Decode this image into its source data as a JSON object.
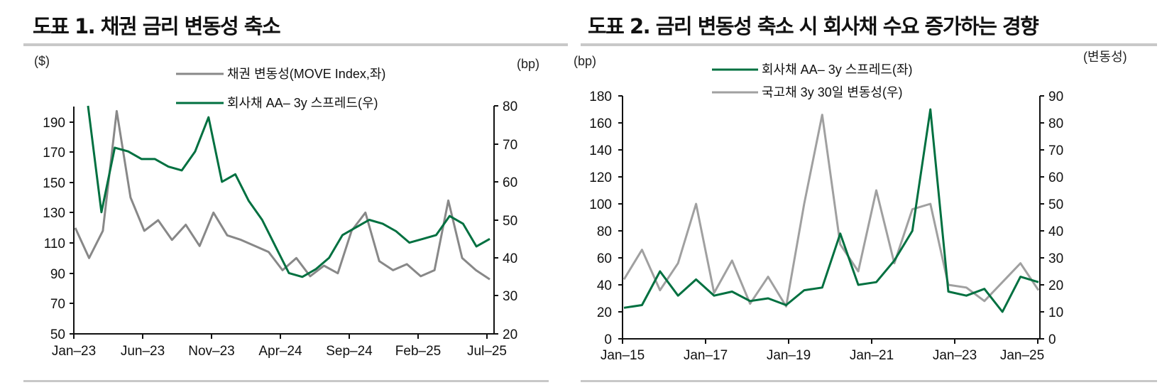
{
  "figure1": {
    "title": "도표 1. 채권 금리 변동성 축소",
    "left_unit": "($)",
    "right_unit": "(bp)",
    "legend": [
      {
        "label": "채권 변동성(MOVE Index,좌)",
        "color": "#888888"
      },
      {
        "label": "회사채 AA– 3y 스프레드(우)",
        "color": "#007040"
      }
    ],
    "left_ticks": [
      "190",
      "170",
      "150",
      "130",
      "110",
      "90",
      "70",
      "50"
    ],
    "right_ticks": [
      "80",
      "70",
      "60",
      "50",
      "40",
      "30",
      "20"
    ],
    "x_ticks": [
      "Jan–23",
      "Jun–23",
      "Nov–23",
      "Apr–24",
      "Sep–24",
      "Feb–25",
      "Jul–25"
    ]
  },
  "figure2": {
    "title": "도표 2. 금리 변동성 축소 시 회사채 수요 증가하는 경향",
    "left_unit": "(bp)",
    "right_unit": "(변동성)",
    "legend": [
      {
        "label": "회사채 AA– 3y 스프레드(좌)",
        "color": "#007040"
      },
      {
        "label": "국고채 3y 30일 변동성(우)",
        "color": "#a0a0a0"
      }
    ],
    "left_ticks": [
      "180",
      "160",
      "140",
      "120",
      "100",
      "80",
      "60",
      "40",
      "20",
      "0"
    ],
    "right_ticks": [
      "90",
      "80",
      "70",
      "60",
      "50",
      "40",
      "30",
      "20",
      "10",
      "0"
    ],
    "x_ticks": [
      "Jan–15",
      "Jan–17",
      "Jan–19",
      "Jan–21",
      "Jan–23",
      "Jan–25"
    ]
  },
  "chart_data": [
    {
      "type": "line",
      "title": "도표 1. 채권 금리 변동성 축소",
      "xlabel": "",
      "ylabel": "($)",
      "ylabel_right": "(bp)",
      "ylim": [
        50,
        200
      ],
      "ylim_right": [
        20,
        80
      ],
      "grid": false,
      "legend_position": "top-center",
      "x_ticks": [
        "Jan-23",
        "Jun-23",
        "Nov-23",
        "Apr-24",
        "Sep-24",
        "Feb-25",
        "Jul-25"
      ],
      "x": [
        "2023-01",
        "2023-02",
        "2023-03",
        "2023-04",
        "2023-05",
        "2023-06",
        "2023-07",
        "2023-08",
        "2023-09",
        "2023-10",
        "2023-11",
        "2023-12",
        "2024-01",
        "2024-02",
        "2024-03",
        "2024-04",
        "2024-05",
        "2024-06",
        "2024-07",
        "2024-08",
        "2024-09",
        "2024-10",
        "2024-11",
        "2024-12",
        "2025-01",
        "2025-02",
        "2025-03",
        "2025-04",
        "2025-05",
        "2025-06",
        "2025-07"
      ],
      "series": [
        {
          "name": "채권 변동성(MOVE Index,좌)",
          "axis": "left",
          "color": "#888888",
          "values": [
            120,
            100,
            118,
            197,
            140,
            118,
            125,
            112,
            122,
            108,
            130,
            115,
            112,
            108,
            104,
            92,
            100,
            88,
            95,
            90,
            118,
            130,
            98,
            92,
            96,
            88,
            92,
            138,
            100,
            92,
            86
          ]
        },
        {
          "name": "회사채 AA– 3y 스프레드(우)",
          "axis": "right",
          "color": "#007040",
          "values": [
            80,
            52,
            69,
            68,
            66,
            66,
            64,
            63,
            68,
            77,
            60,
            62,
            55,
            50,
            43,
            36,
            35,
            37,
            40,
            46,
            48,
            50,
            49,
            47,
            44,
            45,
            46,
            51,
            49,
            43,
            45
          ]
        }
      ]
    },
    {
      "type": "line",
      "title": "도표 2. 금리 변동성 축소 시 회사채 수요 증가하는 경향",
      "xlabel": "",
      "ylabel": "(bp)",
      "ylabel_right": "(변동성)",
      "ylim": [
        0,
        180
      ],
      "ylim_right": [
        0,
        90
      ],
      "grid": false,
      "legend_position": "top-center",
      "x_ticks": [
        "Jan-15",
        "Jan-17",
        "Jan-19",
        "Jan-21",
        "Jan-23",
        "Jan-25"
      ],
      "x": [
        "2015-01",
        "2015-07",
        "2016-01",
        "2016-07",
        "2017-01",
        "2017-07",
        "2018-01",
        "2018-07",
        "2019-01",
        "2019-07",
        "2020-01",
        "2020-04",
        "2020-07",
        "2021-01",
        "2021-07",
        "2022-01",
        "2022-07",
        "2022-11",
        "2023-01",
        "2023-07",
        "2024-01",
        "2024-07",
        "2025-01",
        "2025-06"
      ],
      "series": [
        {
          "name": "회사채 AA– 3y 스프레드(좌)",
          "axis": "left",
          "color": "#007040",
          "values": [
            23,
            25,
            50,
            32,
            44,
            32,
            35,
            28,
            30,
            25,
            36,
            38,
            78,
            40,
            42,
            58,
            80,
            170,
            35,
            32,
            37,
            20,
            46,
            42
          ]
        },
        {
          "name": "국고채 3y 30일 변동성(우)",
          "axis": "right",
          "color": "#a0a0a0",
          "values": [
            22,
            33,
            18,
            28,
            50,
            17,
            29,
            13,
            23,
            12,
            50,
            83,
            35,
            25,
            55,
            28,
            48,
            50,
            20,
            19,
            14,
            21,
            28,
            18
          ]
        }
      ]
    }
  ]
}
